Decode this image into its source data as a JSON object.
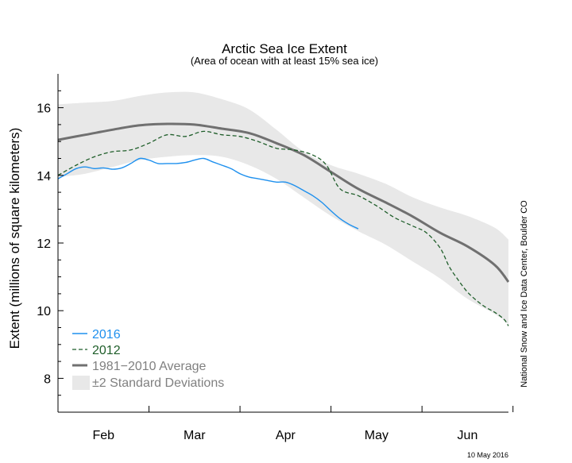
{
  "chart_data": {
    "type": "line",
    "title": "Arctic Sea Ice Extent",
    "subtitle": "(Area of ocean with at least 15% sea ice)",
    "ylabel": "Extent (millions of square kilometers)",
    "xlabel": "",
    "ylim": [
      7,
      17
    ],
    "xlim": [
      0,
      4.95
    ],
    "yticks": [
      8,
      10,
      12,
      14,
      16
    ],
    "xtick_labels": [
      "Feb",
      "Mar",
      "Apr",
      "May",
      "Jun"
    ],
    "grid": false,
    "legend_position": "bottom-left",
    "credit": "National Snow and Ice Data Center, Boulder CO",
    "date_stamp": "10 May 2016",
    "colors": {
      "s2016": "#1e90ee",
      "s2012": "#1f5e2a",
      "avg": "#707070",
      "band": "#e8e8e8"
    },
    "band": {
      "name": "±2 Standard Deviations",
      "x": [
        0.0,
        0.3,
        0.6,
        0.9,
        1.2,
        1.5,
        1.8,
        2.1,
        2.4,
        2.7,
        3.0,
        3.3,
        3.6,
        3.9,
        4.2,
        4.5,
        4.8,
        4.95
      ],
      "upper": [
        16.1,
        16.15,
        16.2,
        16.35,
        16.45,
        16.45,
        16.25,
        15.95,
        15.35,
        14.7,
        14.3,
        14.05,
        13.75,
        13.35,
        13.05,
        12.8,
        12.45,
        12.1
      ],
      "lower": [
        13.95,
        14.05,
        14.25,
        14.45,
        14.55,
        14.6,
        14.55,
        14.3,
        13.9,
        13.35,
        12.8,
        12.35,
        11.95,
        11.45,
        10.95,
        10.35,
        9.9,
        9.6
      ]
    },
    "series": [
      {
        "name": "1981−2010 Average",
        "x": [
          0.0,
          0.3,
          0.6,
          0.9,
          1.2,
          1.5,
          1.8,
          2.1,
          2.4,
          2.7,
          3.0,
          3.3,
          3.6,
          3.9,
          4.2,
          4.5,
          4.8,
          4.95
        ],
        "y": [
          15.05,
          15.2,
          15.35,
          15.48,
          15.52,
          15.5,
          15.38,
          15.25,
          14.95,
          14.6,
          14.1,
          13.6,
          13.2,
          12.78,
          12.3,
          11.9,
          11.35,
          10.85
        ]
      },
      {
        "name": "2016",
        "x": [
          0.0,
          0.1,
          0.2,
          0.3,
          0.4,
          0.5,
          0.6,
          0.7,
          0.8,
          0.9,
          1.0,
          1.1,
          1.2,
          1.3,
          1.4,
          1.5,
          1.6,
          1.7,
          1.8,
          1.9,
          2.0,
          2.1,
          2.2,
          2.3,
          2.4,
          2.5,
          2.6,
          2.7,
          2.8,
          2.9,
          3.0,
          3.1,
          3.2,
          3.3
        ],
        "y": [
          13.9,
          14.05,
          14.2,
          14.25,
          14.2,
          14.22,
          14.18,
          14.22,
          14.35,
          14.5,
          14.45,
          14.35,
          14.35,
          14.35,
          14.38,
          14.45,
          14.5,
          14.4,
          14.3,
          14.2,
          14.05,
          13.95,
          13.9,
          13.85,
          13.8,
          13.8,
          13.7,
          13.55,
          13.4,
          13.2,
          12.95,
          12.72,
          12.55,
          12.42
        ]
      },
      {
        "name": "2012",
        "x": [
          0.0,
          0.2,
          0.4,
          0.6,
          0.8,
          1.0,
          1.2,
          1.4,
          1.6,
          1.8,
          2.0,
          2.2,
          2.4,
          2.6,
          2.8,
          2.95,
          3.1,
          3.3,
          3.5,
          3.7,
          3.9,
          4.05,
          4.2,
          4.3,
          4.4,
          4.5,
          4.6,
          4.7,
          4.8,
          4.9,
          4.95
        ],
        "y": [
          14.0,
          14.3,
          14.55,
          14.7,
          14.75,
          14.95,
          15.2,
          15.15,
          15.3,
          15.2,
          15.15,
          15.0,
          14.8,
          14.75,
          14.6,
          14.3,
          13.6,
          13.4,
          13.1,
          12.75,
          12.5,
          12.3,
          11.85,
          11.3,
          10.9,
          10.55,
          10.3,
          10.1,
          9.95,
          9.75,
          9.55
        ]
      }
    ]
  },
  "legend": {
    "items": [
      {
        "label": "2016",
        "kind": "solid",
        "color": "#1e90ee"
      },
      {
        "label": "2012",
        "kind": "dashed",
        "color": "#1f5e2a"
      },
      {
        "label": "1981−2010 Average",
        "kind": "thick",
        "color": "#707070"
      },
      {
        "label": "±2 Standard Deviations",
        "kind": "box",
        "color": "#e8e8e8"
      }
    ]
  }
}
